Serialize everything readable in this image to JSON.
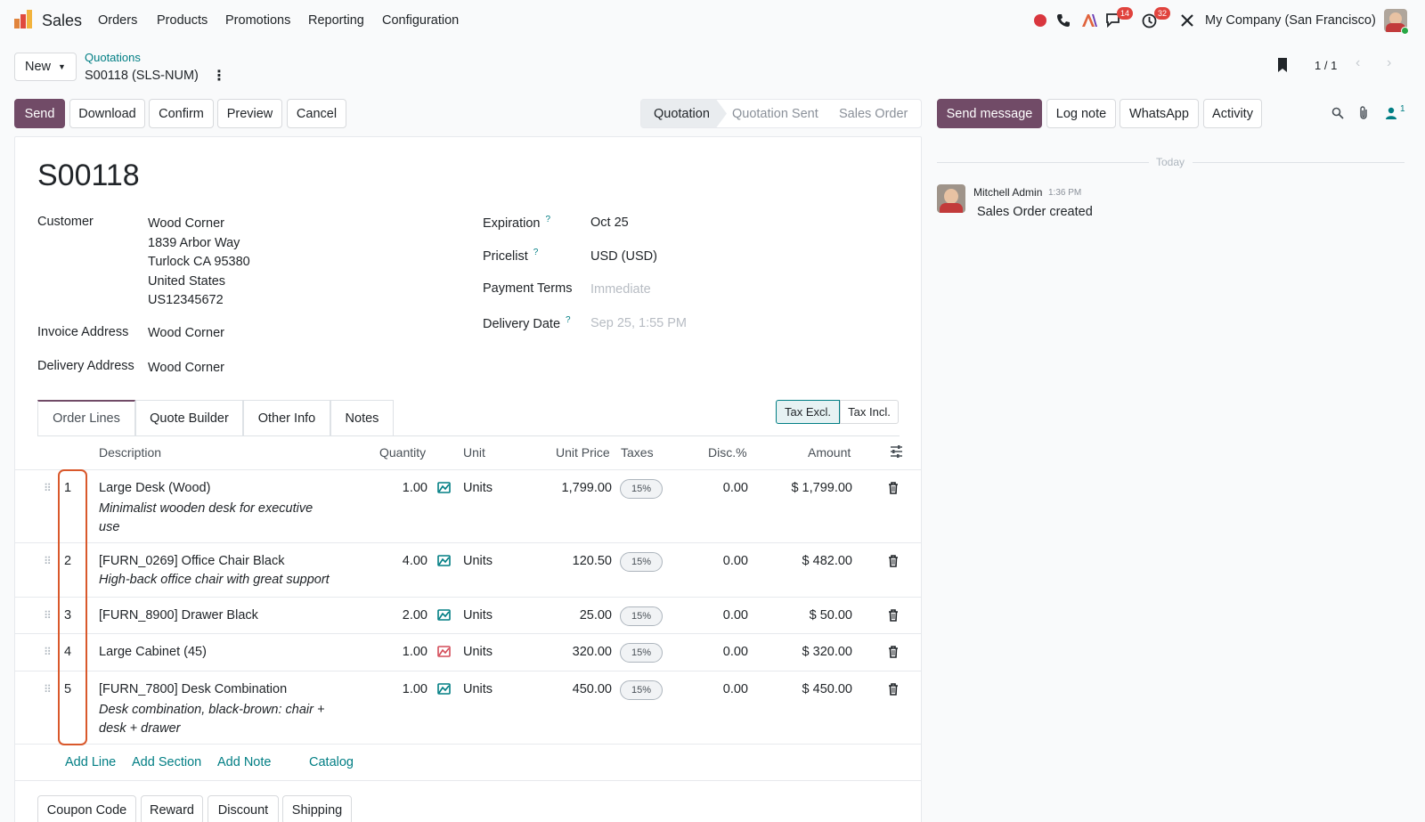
{
  "topbar": {
    "app_name": "Sales",
    "menu": [
      "Orders",
      "Products",
      "Promotions",
      "Reporting",
      "Configuration"
    ],
    "chat_count": "14",
    "activity_count": "32",
    "company": "My Company (San Francisco)"
  },
  "control": {
    "new_label": "New",
    "breadcrumb_parent": "Quotations",
    "record_name": "S00118 (SLS-NUM)",
    "pager": "1 / 1"
  },
  "actions": [
    "Send",
    "Download",
    "Confirm",
    "Preview",
    "Cancel"
  ],
  "statusbar": [
    "Quotation",
    "Quotation Sent",
    "Sales Order"
  ],
  "chatter_buttons": {
    "send_message": "Send message",
    "log_note": "Log note",
    "whatsapp": "WhatsApp",
    "activity": "Activity",
    "followers_count": "1"
  },
  "chatter": {
    "divider": "Today",
    "author": "Mitchell Admin",
    "time": "1:36 PM",
    "message": "Sales Order created"
  },
  "form": {
    "title": "S00118",
    "customer_label": "Customer",
    "customer_lines": [
      "Wood Corner",
      "1839 Arbor Way",
      "Turlock CA 95380",
      "United States",
      "US12345672"
    ],
    "invoice_label": "Invoice Address",
    "invoice_value": "Wood Corner",
    "delivery_label": "Delivery Address",
    "delivery_value": "Wood Corner",
    "expiration_label": "Expiration",
    "expiration_value": "Oct 25",
    "pricelist_label": "Pricelist",
    "pricelist_value": "USD (USD)",
    "payment_label": "Payment Terms",
    "payment_placeholder": "Immediate",
    "delivery_date_label": "Delivery Date",
    "delivery_date_placeholder": "Sep 25, 1:55 PM",
    "help_mark": "?"
  },
  "tabs": [
    "Order Lines",
    "Quote Builder",
    "Other Info",
    "Notes"
  ],
  "tax_toggle": [
    "Tax Excl.",
    "Tax Incl."
  ],
  "table": {
    "headers": {
      "description": "Description",
      "quantity": "Quantity",
      "unit": "Unit",
      "unit_price": "Unit Price",
      "taxes": "Taxes",
      "disc": "Disc.%",
      "amount": "Amount"
    },
    "rows": [
      {
        "seq": "1",
        "name": "Large Desk (Wood)",
        "desc": "Minimalist wooden desk for executive use",
        "qty": "1.00",
        "unit": "Units",
        "price": "1,799.00",
        "tax": "15%",
        "disc": "0.00",
        "amount": "$ 1,799.00",
        "forecast_color": "#017e84"
      },
      {
        "seq": "2",
        "name": "[FURN_0269] Office Chair Black",
        "desc": "High-back office chair with great support",
        "qty": "4.00",
        "unit": "Units",
        "price": "120.50",
        "tax": "15%",
        "disc": "0.00",
        "amount": "$ 482.00",
        "forecast_color": "#017e84"
      },
      {
        "seq": "3",
        "name": "[FURN_8900] Drawer Black",
        "desc": "",
        "qty": "2.00",
        "unit": "Units",
        "price": "25.00",
        "tax": "15%",
        "disc": "0.00",
        "amount": "$ 50.00",
        "forecast_color": "#017e84"
      },
      {
        "seq": "4",
        "name": "Large Cabinet (45)",
        "desc": "",
        "qty": "1.00",
        "unit": "Units",
        "price": "320.00",
        "tax": "15%",
        "disc": "0.00",
        "amount": "$ 320.00",
        "forecast_color": "#d44c59"
      },
      {
        "seq": "5",
        "name": "[FURN_7800] Desk Combination",
        "desc": "Desk combination, black-brown: chair + desk + drawer",
        "qty": "1.00",
        "unit": "Units",
        "price": "450.00",
        "tax": "15%",
        "disc": "0.00",
        "amount": "$ 450.00",
        "forecast_color": "#017e84"
      }
    ],
    "add_links": [
      "Add Line",
      "Add Section",
      "Add Note",
      "Catalog"
    ]
  },
  "footer_buttons": [
    "Coupon Code",
    "Reward",
    "Discount",
    "Shipping"
  ],
  "colors": {
    "brand": "#714b67",
    "link": "#017e84",
    "highlight": "#d9582b"
  }
}
